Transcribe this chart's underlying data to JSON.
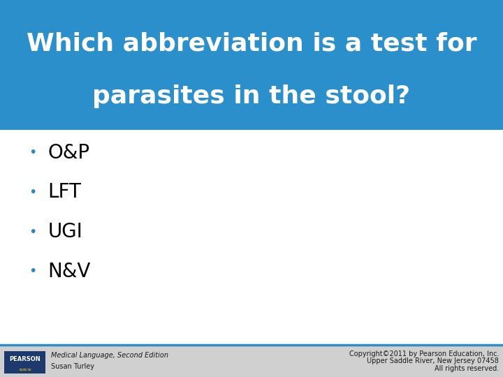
{
  "title_line1": "Which abbreviation is a test for",
  "title_line2": "parasites in the stool?",
  "title_bg_color": "#2B8FCC",
  "title_text_color": "#FFFFFF",
  "body_bg_color": "#FFFFFF",
  "bullet_items": [
    "O&P",
    "LFT",
    "UGI",
    "N&V"
  ],
  "bullet_color": "#2E86C1",
  "bullet_text_color": "#000000",
  "footer_bg_color": "#D0D0D0",
  "footer_line_color": "#2B8FCC",
  "footer_left_line1": "Medical Language, Second Edition",
  "footer_left_line2": "Susan Turley",
  "footer_right_line1": "Copyright©2011 by Pearson Education, Inc.",
  "footer_right_line2": "Upper Saddle River, New Jersey 07458",
  "footer_right_line3": "All rights reserved.",
  "pearson_box_color": "#1C3A6E",
  "pearson_text": "PEARSON",
  "title_fontsize": 26,
  "bullet_fontsize": 20,
  "footer_fontsize": 7
}
